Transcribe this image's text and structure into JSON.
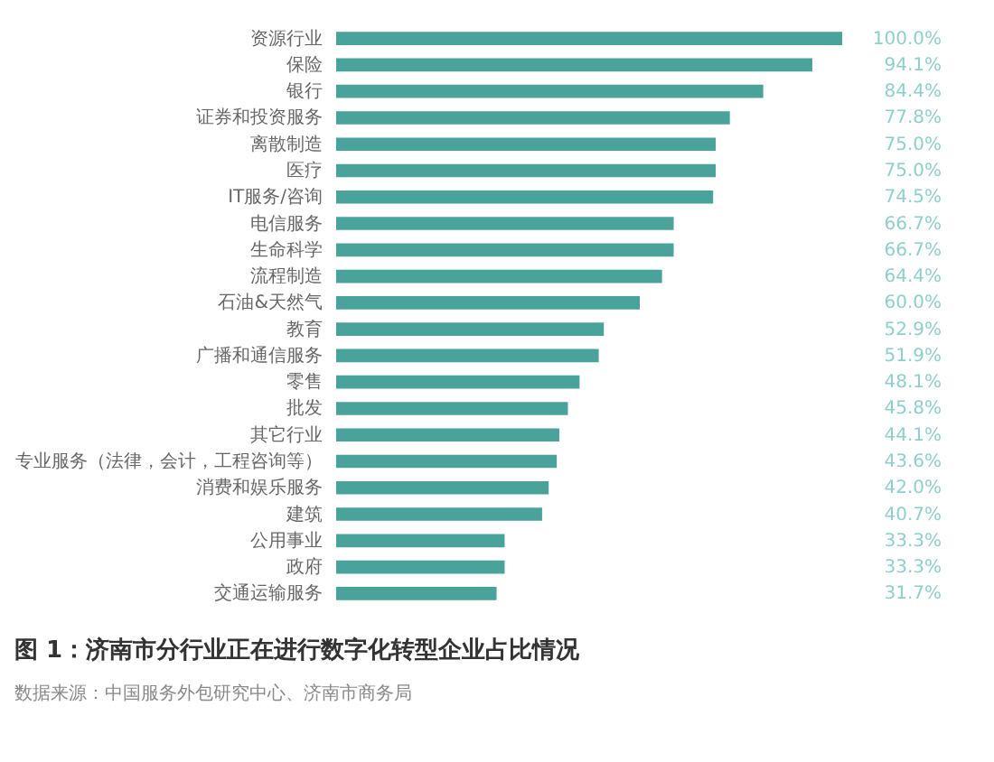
{
  "chart_data": {
    "type": "bar",
    "orientation": "horizontal",
    "title": "图 1：济南市分行业正在进行数字化转型企业占比情况",
    "annotations": [
      "数据来源：中国服务外包研究中心、济南市商务局"
    ],
    "categories": [
      "资源行业",
      "保险",
      "银行",
      "证券和投资服务",
      "离散制造",
      "医疗",
      "IT服务/咨询",
      "电信服务",
      "生命科学",
      "流程制造",
      "石油&天然气",
      "教育",
      "广播和通信服务",
      "零售",
      "批发",
      "其它行业",
      "专业服务（法律，会计，工程咨询等）",
      "消费和娱乐服务",
      "建筑",
      "公用事业",
      "政府",
      "交通运输服务"
    ],
    "values": [
      100.0,
      94.1,
      84.4,
      77.8,
      75.0,
      75.0,
      74.5,
      66.7,
      66.7,
      64.4,
      60.0,
      52.9,
      51.9,
      48.1,
      45.8,
      44.1,
      43.6,
      42.0,
      40.7,
      33.3,
      33.3,
      31.7
    ],
    "value_labels": [
      "100.0%",
      "94.1%",
      "84.4%",
      "77.8%",
      "75.0%",
      "75.0%",
      "74.5%",
      "66.7%",
      "66.7%",
      "64.4%",
      "60.0%",
      "52.9%",
      "51.9%",
      "48.1%",
      "45.8%",
      "44.1%",
      "43.6%",
      "42.0%",
      "40.7%",
      "33.3%",
      "33.3%",
      "31.7%"
    ],
    "color": "#4aa39b",
    "grid": false
  }
}
